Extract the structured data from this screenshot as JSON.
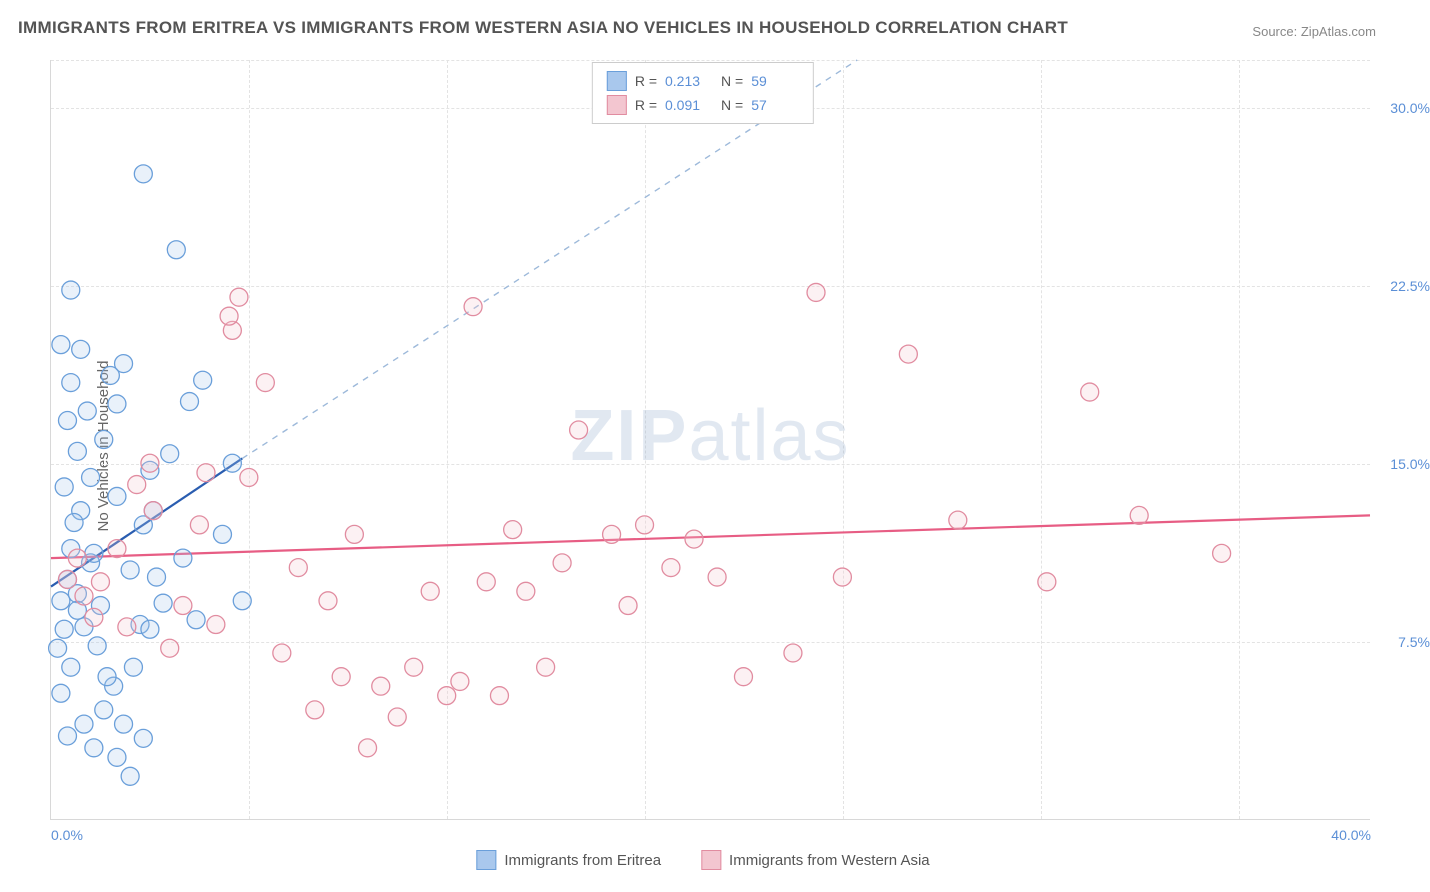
{
  "title": "IMMIGRANTS FROM ERITREA VS IMMIGRANTS FROM WESTERN ASIA NO VEHICLES IN HOUSEHOLD CORRELATION CHART",
  "source_label": "Source:",
  "source_value": "ZipAtlas.com",
  "y_axis_title": "No Vehicles in Household",
  "watermark_prefix": "ZIP",
  "watermark_suffix": "atlas",
  "chart": {
    "type": "scatter",
    "background_color": "#ffffff",
    "grid_color": "#e3e3e3",
    "axis_color": "#d8d8d8",
    "tick_label_color": "#5b8fd6",
    "xlim": [
      0,
      40
    ],
    "ylim": [
      0,
      32
    ],
    "xticks": [
      0,
      40
    ],
    "xtick_labels": [
      "0.0%",
      "40.0%"
    ],
    "yticks": [
      7.5,
      15.0,
      22.5,
      30.0
    ],
    "ytick_labels": [
      "7.5%",
      "15.0%",
      "22.5%",
      "30.0%"
    ],
    "vgrid_positions": [
      0.15,
      0.3,
      0.45,
      0.6,
      0.75,
      0.9
    ],
    "marker_radius": 9,
    "marker_fill_opacity": 0.25,
    "marker_stroke_width": 1.3,
    "series": [
      {
        "name": "Immigrants from Eritrea",
        "color_fill": "#a9c8ed",
        "color_stroke": "#6a9fda",
        "trend_color": "#2a5db0",
        "trend_width": 2.2,
        "trend_dash_color": "#9db9da",
        "R": "0.213",
        "N": "59",
        "trend_solid": {
          "x1": 0.0,
          "y1": 9.8,
          "x2": 5.8,
          "y2": 15.2
        },
        "trend_dashed": {
          "x1": 5.8,
          "y1": 15.2,
          "x2": 30.0,
          "y2": 37.0
        },
        "points": [
          [
            0.3,
            9.2
          ],
          [
            0.5,
            10.1
          ],
          [
            0.6,
            11.4
          ],
          [
            0.4,
            8.0
          ],
          [
            0.8,
            9.5
          ],
          [
            0.2,
            7.2
          ],
          [
            0.9,
            13.0
          ],
          [
            1.2,
            10.8
          ],
          [
            0.6,
            6.4
          ],
          [
            0.3,
            5.3
          ],
          [
            1.0,
            8.1
          ],
          [
            1.5,
            9.0
          ],
          [
            1.3,
            11.2
          ],
          [
            0.7,
            12.5
          ],
          [
            0.4,
            14.0
          ],
          [
            0.8,
            15.5
          ],
          [
            0.5,
            16.8
          ],
          [
            1.1,
            17.2
          ],
          [
            0.6,
            18.4
          ],
          [
            2.0,
            17.5
          ],
          [
            1.8,
            18.7
          ],
          [
            0.9,
            19.8
          ],
          [
            0.3,
            20.0
          ],
          [
            0.6,
            22.3
          ],
          [
            1.6,
            4.6
          ],
          [
            2.2,
            4.0
          ],
          [
            1.9,
            5.6
          ],
          [
            2.5,
            6.4
          ],
          [
            2.7,
            8.2
          ],
          [
            2.0,
            2.6
          ],
          [
            2.4,
            1.8
          ],
          [
            2.8,
            3.4
          ],
          [
            1.3,
            3.0
          ],
          [
            1.7,
            6.0
          ],
          [
            1.4,
            7.3
          ],
          [
            1.0,
            4.0
          ],
          [
            0.5,
            3.5
          ],
          [
            3.0,
            8.0
          ],
          [
            3.4,
            9.1
          ],
          [
            3.2,
            10.2
          ],
          [
            3.1,
            13.0
          ],
          [
            3.6,
            15.4
          ],
          [
            4.0,
            11.0
          ],
          [
            4.4,
            8.4
          ],
          [
            5.2,
            12.0
          ],
          [
            5.5,
            15.0
          ],
          [
            5.8,
            9.2
          ],
          [
            2.4,
            10.5
          ],
          [
            2.8,
            12.4
          ],
          [
            2.0,
            13.6
          ],
          [
            1.2,
            14.4
          ],
          [
            3.8,
            24.0
          ],
          [
            2.8,
            27.2
          ],
          [
            3.0,
            14.7
          ],
          [
            4.2,
            17.6
          ],
          [
            4.6,
            18.5
          ],
          [
            2.2,
            19.2
          ],
          [
            0.8,
            8.8
          ],
          [
            1.6,
            16.0
          ]
        ]
      },
      {
        "name": "Immigrants from Western Asia",
        "color_fill": "#f3c6d0",
        "color_stroke": "#e18ca0",
        "trend_color": "#e75d84",
        "trend_width": 2.2,
        "R": "0.091",
        "N": "57",
        "trend_solid": {
          "x1": 0.0,
          "y1": 11.0,
          "x2": 40.0,
          "y2": 12.8
        },
        "points": [
          [
            0.5,
            10.1
          ],
          [
            0.8,
            11.0
          ],
          [
            1.0,
            9.4
          ],
          [
            1.3,
            8.5
          ],
          [
            1.5,
            10.0
          ],
          [
            2.0,
            11.4
          ],
          [
            2.3,
            8.1
          ],
          [
            2.6,
            14.1
          ],
          [
            3.1,
            13.0
          ],
          [
            3.6,
            7.2
          ],
          [
            4.0,
            9.0
          ],
          [
            4.5,
            12.4
          ],
          [
            5.0,
            8.2
          ],
          [
            5.5,
            20.6
          ],
          [
            5.7,
            22.0
          ],
          [
            6.0,
            14.4
          ],
          [
            6.5,
            18.4
          ],
          [
            7.0,
            7.0
          ],
          [
            7.5,
            10.6
          ],
          [
            8.0,
            4.6
          ],
          [
            8.4,
            9.2
          ],
          [
            8.8,
            6.0
          ],
          [
            9.2,
            12.0
          ],
          [
            9.6,
            3.0
          ],
          [
            10.0,
            5.6
          ],
          [
            10.5,
            4.3
          ],
          [
            11.0,
            6.4
          ],
          [
            11.5,
            9.6
          ],
          [
            12.0,
            5.2
          ],
          [
            12.4,
            5.8
          ],
          [
            12.8,
            21.6
          ],
          [
            13.2,
            10.0
          ],
          [
            13.6,
            5.2
          ],
          [
            14.0,
            12.2
          ],
          [
            14.4,
            9.6
          ],
          [
            15.0,
            6.4
          ],
          [
            15.5,
            10.8
          ],
          [
            16.0,
            16.4
          ],
          [
            17.0,
            12.0
          ],
          [
            17.5,
            9.0
          ],
          [
            18.0,
            12.4
          ],
          [
            18.8,
            10.6
          ],
          [
            19.5,
            11.8
          ],
          [
            20.2,
            10.2
          ],
          [
            21.0,
            6.0
          ],
          [
            22.5,
            7.0
          ],
          [
            23.2,
            22.2
          ],
          [
            24.0,
            10.2
          ],
          [
            26.0,
            19.6
          ],
          [
            27.5,
            12.6
          ],
          [
            30.2,
            10.0
          ],
          [
            31.5,
            18.0
          ],
          [
            33.0,
            12.8
          ],
          [
            35.5,
            11.2
          ],
          [
            5.4,
            21.2
          ],
          [
            3.0,
            15.0
          ],
          [
            4.7,
            14.6
          ]
        ]
      }
    ]
  },
  "legend_top": {
    "r_label": "R  =",
    "n_label": "N  ="
  }
}
